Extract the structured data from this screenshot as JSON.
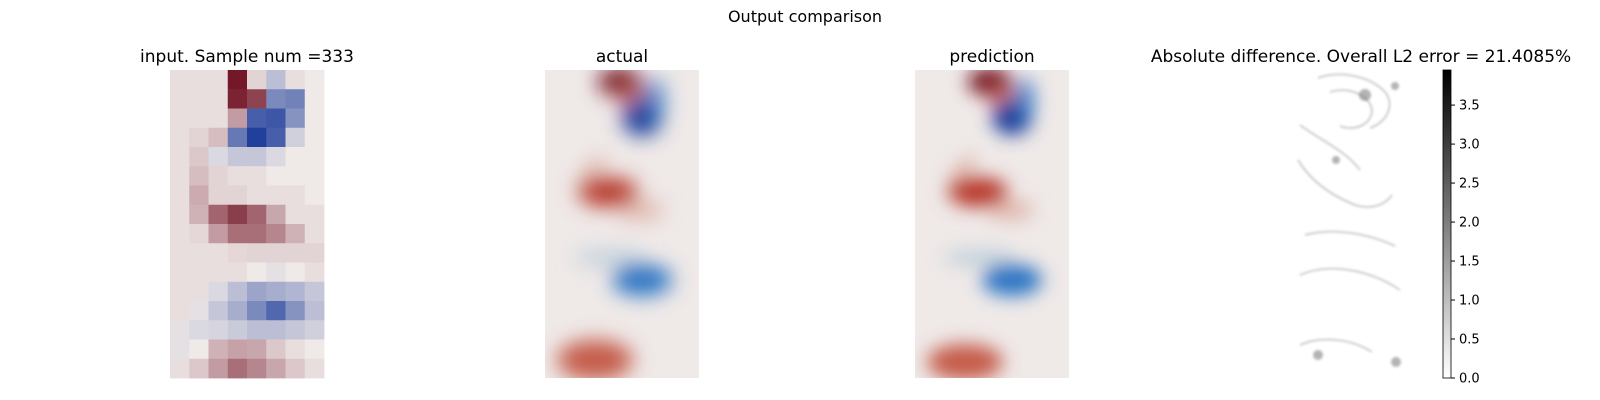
{
  "figure": {
    "suptitle": "Output comparison"
  },
  "chart_data": [
    {
      "type": "heatmap",
      "title": "input. Sample num =333",
      "field": "input",
      "grid": "coarse 8x16"
    },
    {
      "type": "heatmap",
      "title": "actual",
      "field": "actual"
    },
    {
      "type": "heatmap",
      "title": "prediction",
      "field": "prediction"
    },
    {
      "type": "heatmap",
      "title": "Absolute difference. Overall L2 error = 21.4085%",
      "field": "absolute-difference",
      "colorbar": {
        "cmap": "grey-white-to-black",
        "range": [
          0,
          3.95
        ],
        "ticks": [
          "0.0",
          "0.5",
          "1.0",
          "1.5",
          "2.0",
          "2.5",
          "3.0",
          "3.5"
        ]
      }
    }
  ],
  "colors": {
    "red_strong": "#6e0c1f",
    "red_mid": "#b8382b",
    "red_light": "#d9a293",
    "neutral": "#efe9e8",
    "blue_light": "#aac4d4",
    "blue_mid": "#2b74c4",
    "blue_strong": "#1d3d9a"
  }
}
